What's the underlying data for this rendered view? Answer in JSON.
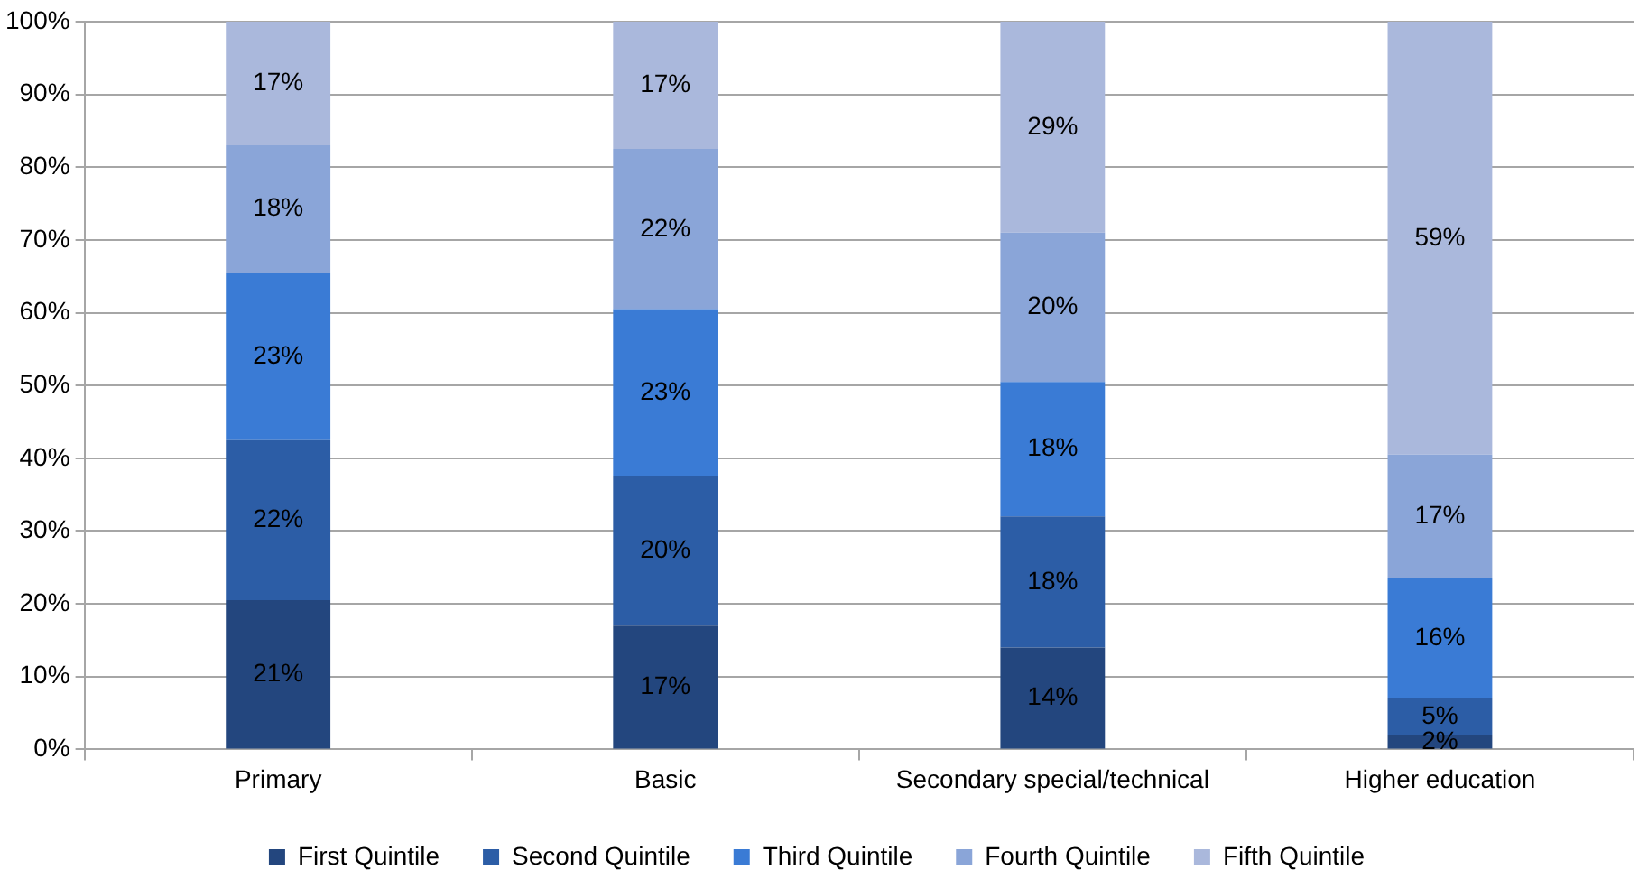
{
  "chart_data": {
    "type": "bar",
    "stacked": true,
    "categories": [
      "Primary",
      "Basic",
      "Secondary special/technical",
      "Higher education"
    ],
    "series": [
      {
        "name": "First Quintile",
        "color": "#23467e",
        "values": [
          20.5,
          17,
          14,
          2
        ],
        "value_labels": [
          "21%",
          "17%",
          "14%",
          "2%"
        ]
      },
      {
        "name": "Second Quintile",
        "color": "#2c5da6",
        "values": [
          22,
          20.5,
          18,
          5
        ],
        "value_labels": [
          "22%",
          "20%",
          "18%",
          "5%"
        ]
      },
      {
        "name": "Third Quintile",
        "color": "#3a7bd5",
        "values": [
          23,
          23,
          18.5,
          16.5
        ],
        "value_labels": [
          "23%",
          "23%",
          "18%",
          "16%"
        ]
      },
      {
        "name": "Fourth Quintile",
        "color": "#8aa5d8",
        "values": [
          17.5,
          22,
          20.5,
          17
        ],
        "value_labels": [
          "18%",
          "22%",
          "20%",
          "17%"
        ]
      },
      {
        "name": "Fifth Quintile",
        "color": "#aab8dc",
        "values": [
          17,
          17.5,
          29,
          59.5
        ],
        "value_labels": [
          "17%",
          "17%",
          "29%",
          "59%"
        ]
      }
    ],
    "ylim": [
      0,
      100
    ],
    "yticks": [
      {
        "value": 0,
        "label": "0%"
      },
      {
        "value": 10,
        "label": "10%"
      },
      {
        "value": 20,
        "label": "20%"
      },
      {
        "value": 30,
        "label": "30%"
      },
      {
        "value": 40,
        "label": "40%"
      },
      {
        "value": 50,
        "label": "50%"
      },
      {
        "value": 60,
        "label": "60%"
      },
      {
        "value": 70,
        "label": "70%"
      },
      {
        "value": 80,
        "label": "80%"
      },
      {
        "value": 90,
        "label": "90%"
      },
      {
        "value": 100,
        "label": "100%"
      }
    ],
    "grid": "y",
    "legend": "bottom"
  }
}
